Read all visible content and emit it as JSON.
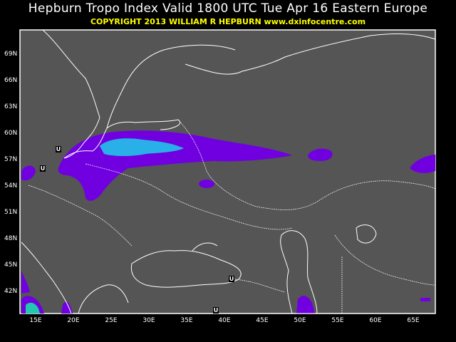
{
  "header": {
    "title": "Hepburn Tropo Index Valid 1800 UTC Tue Apr 16 Eastern Europe",
    "subtitle": "COPYRIGHT 2013   WILLIAM R HEPBURN   www.dxinfocentre.com"
  },
  "map": {
    "lat_labels": [
      "69N",
      "66N",
      "63N",
      "60N",
      "57N",
      "54N",
      "51N",
      "48N",
      "45N",
      "42N"
    ],
    "lon_labels": [
      "15E",
      "20E",
      "25E",
      "30E",
      "35E",
      "40E",
      "45E",
      "50E",
      "55E",
      "60E",
      "65E"
    ],
    "markers": [
      "U",
      "U",
      "U",
      "U"
    ],
    "colors": {
      "background": "#555555",
      "index_low": "#7000e0",
      "index_mid": "#2aa8e8",
      "index_high": "#20d0a0",
      "coastline": "#ffffff"
    }
  }
}
